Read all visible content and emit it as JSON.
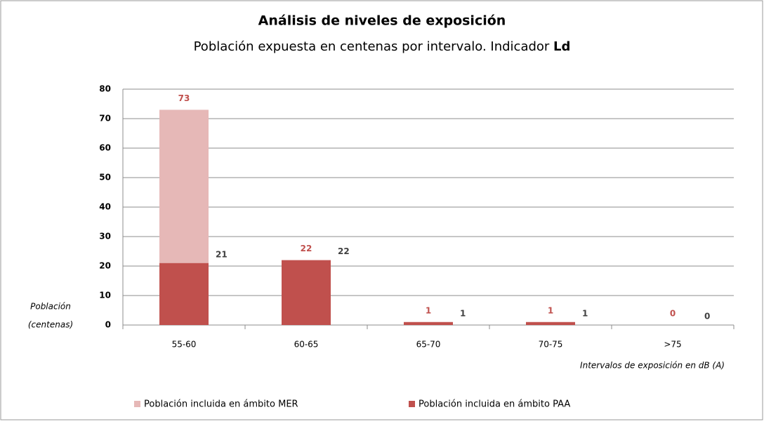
{
  "chart_data": {
    "type": "bar",
    "title": "Análisis de niveles de exposición",
    "subtitle": "Población expuesta en centenas por intervalo. Indicador",
    "subtitle_emphasis": "Ld",
    "ylabel": [
      "Población",
      "(centenas)"
    ],
    "xlabel": "Intervalos de exposición en dB (A)",
    "categories": [
      "55-60",
      "60-65",
      "65-70",
      "70-75",
      ">75"
    ],
    "series": [
      {
        "name": "Población incluida en ámbito MER",
        "color": "#e6b8b7",
        "values": [
          73,
          22,
          1,
          1,
          0
        ]
      },
      {
        "name": "Población incluida en ámbito PAA",
        "color": "#c0504d",
        "values": [
          21,
          22,
          1,
          1,
          0
        ]
      }
    ],
    "ylim": [
      0,
      80
    ],
    "yticks": [
      0,
      10,
      20,
      30,
      40,
      50,
      60,
      70,
      80
    ],
    "grid": true
  }
}
